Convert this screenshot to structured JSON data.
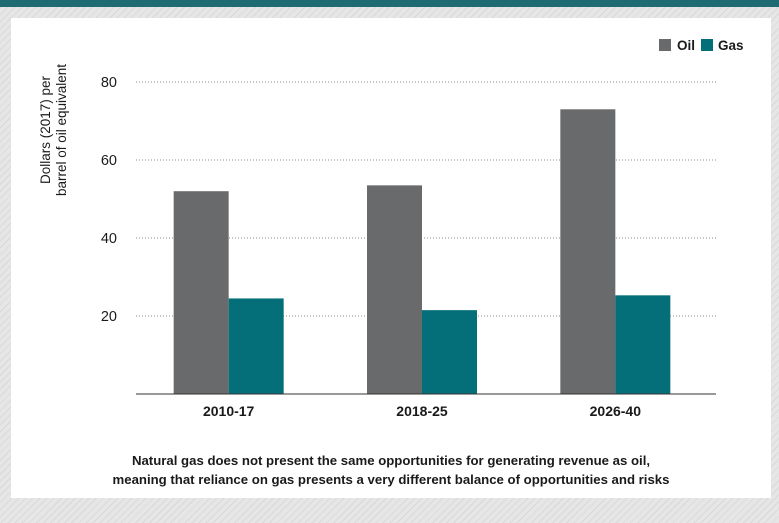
{
  "colors": {
    "oil": "#696a6c",
    "gas": "#046e79",
    "header": "#1f6b73"
  },
  "chart_data": {
    "type": "bar",
    "categories": [
      "2010-17",
      "2018-25",
      "2026-40"
    ],
    "series": [
      {
        "name": "Oil",
        "values": [
          52,
          53.5,
          73
        ]
      },
      {
        "name": "Gas",
        "values": [
          24.5,
          21.5,
          25.3
        ]
      }
    ],
    "ylabel_lines": [
      "Dollars (2017) per",
      "barrel of oil equivalent"
    ],
    "yticks": [
      "20",
      "40",
      "60",
      "80"
    ],
    "ylim": [
      0,
      80
    ],
    "grid": true,
    "legend_position": "top-right"
  },
  "caption": {
    "line1": "Natural gas does not present the same opportunities for generating revenue as oil,",
    "line2": "meaning that reliance on gas presents a very different balance of opportunities and risks"
  }
}
